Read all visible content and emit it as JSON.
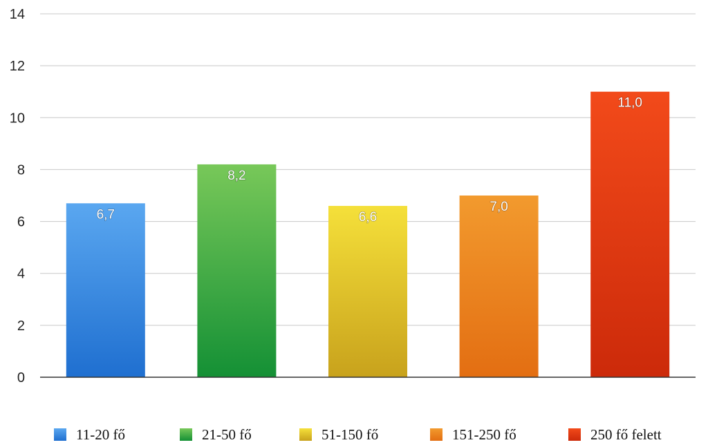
{
  "chart_data": {
    "type": "bar",
    "categories": [
      "11-20 fő",
      "21-50 fő",
      "51-150 fő",
      "151-250 fő",
      "250 fő felett"
    ],
    "values": [
      6.7,
      8.2,
      6.6,
      7.0,
      11.0
    ],
    "value_labels": [
      "6,7",
      "8,2",
      "6,6",
      "7,0",
      "11,0"
    ],
    "ylim": [
      0,
      14
    ],
    "yticks": [
      "0",
      "2",
      "4",
      "6",
      "8",
      "10",
      "12",
      "14"
    ],
    "grid": true,
    "legend_position": "bottom",
    "colors": [
      {
        "top": "#5aa7f0",
        "bottom": "#1f6fd0"
      },
      {
        "top": "#78c859",
        "bottom": "#149035"
      },
      {
        "top": "#f5e03a",
        "bottom": "#c8a21c"
      },
      {
        "top": "#f29a2e",
        "bottom": "#e36e12"
      },
      {
        "top": "#f24a1a",
        "bottom": "#cc2a0a"
      }
    ]
  }
}
